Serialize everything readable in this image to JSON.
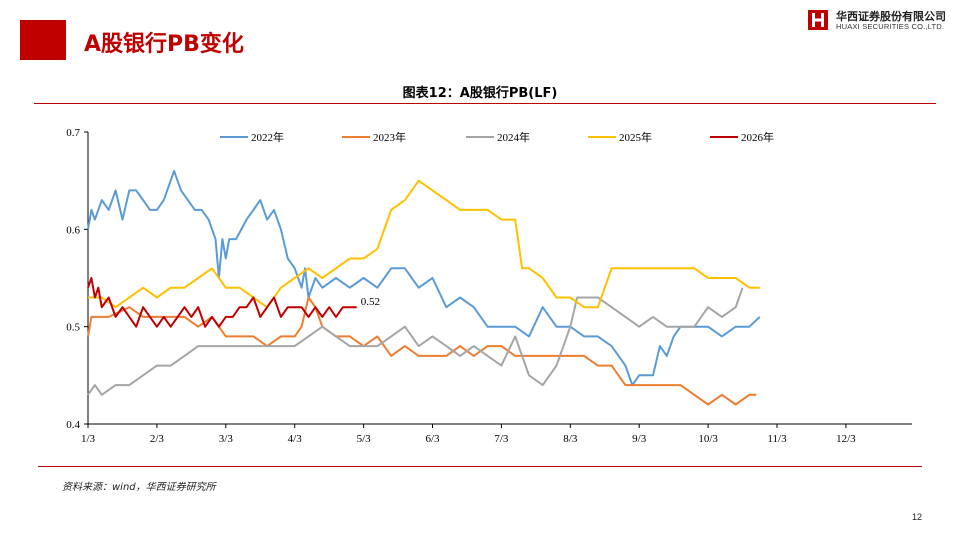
{
  "header": {
    "title": "A股银行PB变化"
  },
  "logo": {
    "name_cn": "华西证券股份有限公司",
    "name_en": "HUAXI SECURITIES CO.,LTD."
  },
  "footer": {
    "source": "资料来源：wind，华西证券研究所",
    "page": "12"
  },
  "colors": {
    "accent": "#c00000",
    "s2022": "#5b9bd5",
    "s2023": "#ed7d31",
    "s2024": "#a5a5a5",
    "s2025": "#ffc000",
    "s2026": "#c00000"
  },
  "chart_data": {
    "type": "line",
    "title": "图表12：A股银行PB(LF)",
    "ylim": [
      0.4,
      0.7
    ],
    "yticks": [
      "0.4",
      "0.5",
      "0.6",
      "0.7"
    ],
    "xticks": [
      "1/3",
      "2/3",
      "3/3",
      "4/3",
      "5/3",
      "6/3",
      "7/3",
      "8/3",
      "9/3",
      "10/3",
      "11/3",
      "12/3"
    ],
    "legend": "top",
    "annotation": {
      "text": "0.52",
      "series": "2026年"
    },
    "series": [
      {
        "name": "2022年",
        "color": "#5b9bd5",
        "points": [
          [
            0,
            0.6
          ],
          [
            0.05,
            0.62
          ],
          [
            0.1,
            0.61
          ],
          [
            0.2,
            0.63
          ],
          [
            0.3,
            0.62
          ],
          [
            0.4,
            0.64
          ],
          [
            0.5,
            0.61
          ],
          [
            0.6,
            0.64
          ],
          [
            0.7,
            0.64
          ],
          [
            0.8,
            0.63
          ],
          [
            0.9,
            0.62
          ],
          [
            1.0,
            0.62
          ],
          [
            1.1,
            0.63
          ],
          [
            1.15,
            0.64
          ],
          [
            1.25,
            0.66
          ],
          [
            1.35,
            0.64
          ],
          [
            1.45,
            0.63
          ],
          [
            1.55,
            0.62
          ],
          [
            1.65,
            0.62
          ],
          [
            1.75,
            0.61
          ],
          [
            1.85,
            0.59
          ],
          [
            1.9,
            0.55
          ],
          [
            1.95,
            0.59
          ],
          [
            2.0,
            0.57
          ],
          [
            2.05,
            0.59
          ],
          [
            2.15,
            0.59
          ],
          [
            2.3,
            0.61
          ],
          [
            2.4,
            0.62
          ],
          [
            2.5,
            0.63
          ],
          [
            2.6,
            0.61
          ],
          [
            2.7,
            0.62
          ],
          [
            2.8,
            0.6
          ],
          [
            2.9,
            0.57
          ],
          [
            3.0,
            0.56
          ],
          [
            3.1,
            0.54
          ],
          [
            3.15,
            0.56
          ],
          [
            3.2,
            0.53
          ],
          [
            3.3,
            0.55
          ],
          [
            3.4,
            0.54
          ],
          [
            3.6,
            0.55
          ],
          [
            3.8,
            0.54
          ],
          [
            4.0,
            0.55
          ],
          [
            4.2,
            0.54
          ],
          [
            4.4,
            0.56
          ],
          [
            4.6,
            0.56
          ],
          [
            4.8,
            0.54
          ],
          [
            5.0,
            0.55
          ],
          [
            5.2,
            0.52
          ],
          [
            5.4,
            0.53
          ],
          [
            5.6,
            0.52
          ],
          [
            5.8,
            0.5
          ],
          [
            6.0,
            0.5
          ],
          [
            6.2,
            0.5
          ],
          [
            6.4,
            0.49
          ],
          [
            6.6,
            0.52
          ],
          [
            6.8,
            0.5
          ],
          [
            7.0,
            0.5
          ],
          [
            7.2,
            0.49
          ],
          [
            7.4,
            0.49
          ],
          [
            7.6,
            0.48
          ],
          [
            7.8,
            0.46
          ],
          [
            7.9,
            0.44
          ],
          [
            8.0,
            0.45
          ],
          [
            8.2,
            0.45
          ],
          [
            8.3,
            0.48
          ],
          [
            8.4,
            0.47
          ],
          [
            8.5,
            0.49
          ],
          [
            8.6,
            0.5
          ],
          [
            8.8,
            0.5
          ],
          [
            9.0,
            0.5
          ],
          [
            9.2,
            0.49
          ],
          [
            9.4,
            0.5
          ],
          [
            9.6,
            0.5
          ],
          [
            9.75,
            0.51
          ]
        ]
      },
      {
        "name": "2023年",
        "color": "#ed7d31",
        "points": [
          [
            0,
            0.49
          ],
          [
            0.05,
            0.51
          ],
          [
            0.3,
            0.51
          ],
          [
            0.6,
            0.52
          ],
          [
            0.8,
            0.51
          ],
          [
            1.0,
            0.51
          ],
          [
            1.2,
            0.51
          ],
          [
            1.4,
            0.51
          ],
          [
            1.6,
            0.5
          ],
          [
            1.8,
            0.51
          ],
          [
            2.0,
            0.49
          ],
          [
            2.2,
            0.49
          ],
          [
            2.4,
            0.49
          ],
          [
            2.6,
            0.48
          ],
          [
            2.8,
            0.49
          ],
          [
            3.0,
            0.49
          ],
          [
            3.1,
            0.5
          ],
          [
            3.2,
            0.53
          ],
          [
            3.3,
            0.52
          ],
          [
            3.4,
            0.5
          ],
          [
            3.6,
            0.49
          ],
          [
            3.8,
            0.49
          ],
          [
            4.0,
            0.48
          ],
          [
            4.2,
            0.49
          ],
          [
            4.4,
            0.47
          ],
          [
            4.6,
            0.48
          ],
          [
            4.8,
            0.47
          ],
          [
            5.0,
            0.47
          ],
          [
            5.2,
            0.47
          ],
          [
            5.4,
            0.48
          ],
          [
            5.6,
            0.47
          ],
          [
            5.8,
            0.48
          ],
          [
            6.0,
            0.48
          ],
          [
            6.2,
            0.47
          ],
          [
            6.4,
            0.47
          ],
          [
            6.6,
            0.47
          ],
          [
            6.8,
            0.47
          ],
          [
            7.0,
            0.47
          ],
          [
            7.2,
            0.47
          ],
          [
            7.4,
            0.46
          ],
          [
            7.6,
            0.46
          ],
          [
            7.8,
            0.44
          ],
          [
            8.0,
            0.44
          ],
          [
            8.2,
            0.44
          ],
          [
            8.4,
            0.44
          ],
          [
            8.6,
            0.44
          ],
          [
            8.8,
            0.43
          ],
          [
            9.0,
            0.42
          ],
          [
            9.2,
            0.43
          ],
          [
            9.4,
            0.42
          ],
          [
            9.6,
            0.43
          ],
          [
            9.7,
            0.43
          ]
        ]
      },
      {
        "name": "2024年",
        "color": "#a5a5a5",
        "points": [
          [
            0,
            0.43
          ],
          [
            0.1,
            0.44
          ],
          [
            0.2,
            0.43
          ],
          [
            0.4,
            0.44
          ],
          [
            0.6,
            0.44
          ],
          [
            0.8,
            0.45
          ],
          [
            1.0,
            0.46
          ],
          [
            1.2,
            0.46
          ],
          [
            1.4,
            0.47
          ],
          [
            1.6,
            0.48
          ],
          [
            1.8,
            0.48
          ],
          [
            2.0,
            0.48
          ],
          [
            2.2,
            0.48
          ],
          [
            2.4,
            0.48
          ],
          [
            2.6,
            0.48
          ],
          [
            2.8,
            0.48
          ],
          [
            3.0,
            0.48
          ],
          [
            3.2,
            0.49
          ],
          [
            3.4,
            0.5
          ],
          [
            3.6,
            0.49
          ],
          [
            3.8,
            0.48
          ],
          [
            4.0,
            0.48
          ],
          [
            4.2,
            0.48
          ],
          [
            4.4,
            0.49
          ],
          [
            4.6,
            0.5
          ],
          [
            4.8,
            0.48
          ],
          [
            5.0,
            0.49
          ],
          [
            5.2,
            0.48
          ],
          [
            5.4,
            0.47
          ],
          [
            5.6,
            0.48
          ],
          [
            5.8,
            0.47
          ],
          [
            6.0,
            0.46
          ],
          [
            6.2,
            0.49
          ],
          [
            6.4,
            0.45
          ],
          [
            6.6,
            0.44
          ],
          [
            6.8,
            0.46
          ],
          [
            7.0,
            0.5
          ],
          [
            7.1,
            0.53
          ],
          [
            7.2,
            0.53
          ],
          [
            7.4,
            0.53
          ],
          [
            7.6,
            0.52
          ],
          [
            7.8,
            0.51
          ],
          [
            8.0,
            0.5
          ],
          [
            8.2,
            0.51
          ],
          [
            8.4,
            0.5
          ],
          [
            8.6,
            0.5
          ],
          [
            8.8,
            0.5
          ],
          [
            9.0,
            0.52
          ],
          [
            9.2,
            0.51
          ],
          [
            9.4,
            0.52
          ],
          [
            9.5,
            0.54
          ]
        ]
      },
      {
        "name": "2025年",
        "color": "#ffc000",
        "points": [
          [
            0,
            0.53
          ],
          [
            0.2,
            0.53
          ],
          [
            0.4,
            0.52
          ],
          [
            0.6,
            0.53
          ],
          [
            0.8,
            0.54
          ],
          [
            1.0,
            0.53
          ],
          [
            1.2,
            0.54
          ],
          [
            1.4,
            0.54
          ],
          [
            1.6,
            0.55
          ],
          [
            1.8,
            0.56
          ],
          [
            2.0,
            0.54
          ],
          [
            2.2,
            0.54
          ],
          [
            2.4,
            0.53
          ],
          [
            2.6,
            0.52
          ],
          [
            2.8,
            0.54
          ],
          [
            3.0,
            0.55
          ],
          [
            3.2,
            0.56
          ],
          [
            3.4,
            0.55
          ],
          [
            3.6,
            0.56
          ],
          [
            3.8,
            0.57
          ],
          [
            4.0,
            0.57
          ],
          [
            4.2,
            0.58
          ],
          [
            4.4,
            0.62
          ],
          [
            4.6,
            0.63
          ],
          [
            4.8,
            0.65
          ],
          [
            5.0,
            0.64
          ],
          [
            5.2,
            0.63
          ],
          [
            5.4,
            0.62
          ],
          [
            5.6,
            0.62
          ],
          [
            5.8,
            0.62
          ],
          [
            6.0,
            0.61
          ],
          [
            6.2,
            0.61
          ],
          [
            6.3,
            0.56
          ],
          [
            6.4,
            0.56
          ],
          [
            6.6,
            0.55
          ],
          [
            6.8,
            0.53
          ],
          [
            7.0,
            0.53
          ],
          [
            7.2,
            0.52
          ],
          [
            7.4,
            0.52
          ],
          [
            7.6,
            0.56
          ],
          [
            7.8,
            0.56
          ],
          [
            8.0,
            0.56
          ],
          [
            8.2,
            0.56
          ],
          [
            8.4,
            0.56
          ],
          [
            8.6,
            0.56
          ],
          [
            8.8,
            0.56
          ],
          [
            9.0,
            0.55
          ],
          [
            9.2,
            0.55
          ],
          [
            9.4,
            0.55
          ],
          [
            9.6,
            0.54
          ],
          [
            9.75,
            0.54
          ]
        ]
      },
      {
        "name": "2026年",
        "color": "#c00000",
        "points": [
          [
            0,
            0.54
          ],
          [
            0.05,
            0.55
          ],
          [
            0.1,
            0.53
          ],
          [
            0.15,
            0.54
          ],
          [
            0.2,
            0.52
          ],
          [
            0.3,
            0.53
          ],
          [
            0.4,
            0.51
          ],
          [
            0.5,
            0.52
          ],
          [
            0.6,
            0.51
          ],
          [
            0.7,
            0.5
          ],
          [
            0.8,
            0.52
          ],
          [
            0.9,
            0.51
          ],
          [
            1.0,
            0.5
          ],
          [
            1.1,
            0.51
          ],
          [
            1.2,
            0.5
          ],
          [
            1.3,
            0.51
          ],
          [
            1.4,
            0.52
          ],
          [
            1.5,
            0.51
          ],
          [
            1.6,
            0.52
          ],
          [
            1.7,
            0.5
          ],
          [
            1.8,
            0.51
          ],
          [
            1.9,
            0.5
          ],
          [
            2.0,
            0.51
          ],
          [
            2.1,
            0.51
          ],
          [
            2.2,
            0.52
          ],
          [
            2.3,
            0.52
          ],
          [
            2.4,
            0.53
          ],
          [
            2.5,
            0.51
          ],
          [
            2.6,
            0.52
          ],
          [
            2.7,
            0.53
          ],
          [
            2.8,
            0.51
          ],
          [
            2.9,
            0.52
          ],
          [
            3.0,
            0.52
          ],
          [
            3.1,
            0.52
          ],
          [
            3.2,
            0.51
          ],
          [
            3.3,
            0.52
          ],
          [
            3.4,
            0.51
          ],
          [
            3.5,
            0.52
          ],
          [
            3.6,
            0.51
          ],
          [
            3.7,
            0.52
          ],
          [
            3.8,
            0.52
          ],
          [
            3.9,
            0.52
          ]
        ]
      }
    ]
  }
}
